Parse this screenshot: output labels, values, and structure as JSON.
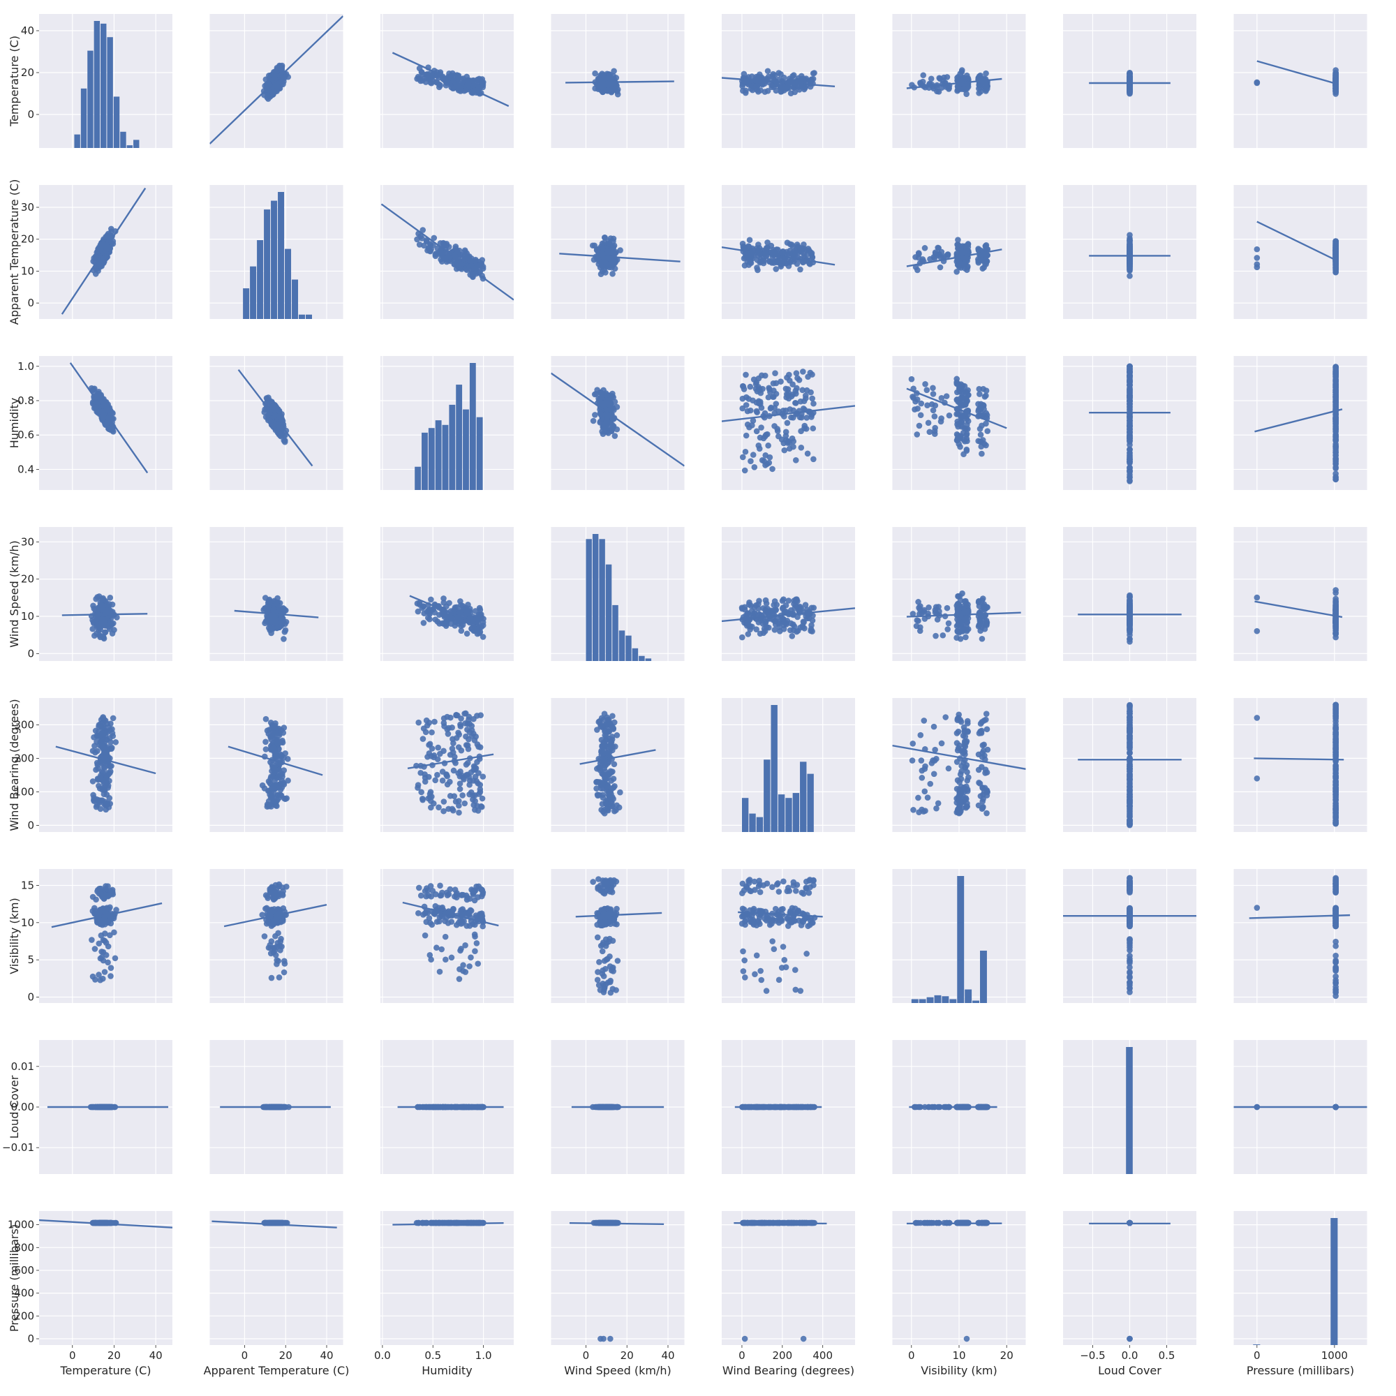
{
  "chart_data": {
    "type": "scatter",
    "kind": "pairplot",
    "grid": true,
    "colors": {
      "background": "#EAEAF2",
      "points": "#4C72B0",
      "grid": "#FFFFFF",
      "text": "#262626"
    },
    "variables": [
      {
        "name": "Temperature (C)",
        "lim": [
          -16,
          48
        ],
        "ticks": [
          0,
          20,
          40
        ],
        "tick_labels": [
          "0",
          "20",
          "40"
        ],
        "ylim": [
          -16,
          48
        ],
        "yticks": [
          0,
          20,
          40
        ],
        "ytick_labels": [
          "0",
          "20",
          "40"
        ]
      },
      {
        "name": "Apparent Temperature (C)",
        "lim": [
          -17,
          48
        ],
        "ticks": [
          0,
          20,
          40
        ],
        "tick_labels": [
          "0",
          "20",
          "40"
        ],
        "ylim": [
          -5,
          37
        ],
        "yticks": [
          0,
          10,
          20,
          30
        ],
        "ytick_labels": [
          "0",
          "10",
          "20",
          "30"
        ]
      },
      {
        "name": "Humidity",
        "lim": [
          -0.02,
          1.3
        ],
        "ticks": [
          0.0,
          0.5,
          1.0
        ],
        "tick_labels": [
          "0.0",
          "0.5",
          "1.0"
        ],
        "ylim": [
          0.28,
          1.06
        ],
        "yticks": [
          0.4,
          0.6,
          0.8,
          1.0
        ],
        "ytick_labels": [
          "0.4",
          "0.6",
          "0.8",
          "1.0"
        ]
      },
      {
        "name": "Wind Speed (km/h)",
        "lim": [
          -17,
          48
        ],
        "ticks": [
          0,
          20,
          40
        ],
        "tick_labels": [
          "0",
          "20",
          "40"
        ],
        "ylim": [
          -2,
          34
        ],
        "yticks": [
          0,
          10,
          20,
          30
        ],
        "ytick_labels": [
          "0",
          "10",
          "20",
          "30"
        ]
      },
      {
        "name": "Wind Bearing (degrees)",
        "lim": [
          -100,
          560
        ],
        "ticks": [
          0,
          200,
          400
        ],
        "tick_labels": [
          "0",
          "200",
          "400"
        ],
        "ylim": [
          -20,
          380
        ],
        "yticks": [
          0,
          100,
          200,
          300
        ],
        "ytick_labels": [
          "0",
          "100",
          "200",
          "300"
        ]
      },
      {
        "name": "Visibility (km)",
        "lim": [
          -4,
          24
        ],
        "ticks": [
          0,
          10,
          20
        ],
        "tick_labels": [
          "0",
          "10",
          "20"
        ],
        "ylim": [
          -0.8,
          17.2
        ],
        "yticks": [
          0,
          5,
          10,
          15
        ],
        "ytick_labels": [
          "0",
          "5",
          "10",
          "15"
        ]
      },
      {
        "name": "Loud Cover",
        "lim": [
          -0.9,
          0.9
        ],
        "ticks": [
          -0.5,
          0.0,
          0.5
        ],
        "tick_labels": [
          "−0.5",
          "0.0",
          "0.5"
        ],
        "ylim": [
          -0.0165,
          0.0165
        ],
        "yticks": [
          -0.01,
          0.0,
          0.01
        ],
        "ytick_labels": [
          "−0.01",
          "0.00",
          "0.01"
        ]
      },
      {
        "name": "Pressure (millibars)",
        "lim": [
          -300,
          1420
        ],
        "ticks": [
          0,
          1000
        ],
        "tick_labels": [
          "0",
          "1000"
        ],
        "ylim": [
          -55,
          1120
        ],
        "yticks": [
          0,
          200,
          400,
          600,
          800,
          1000
        ],
        "ytick_labels": [
          "0",
          "200",
          "400",
          "600",
          "800",
          "1000"
        ]
      }
    ],
    "histograms": [
      {
        "variable": "Temperature (C)",
        "bin_start": 0.9,
        "bin_width": 3.15,
        "heights": [
          5,
          22,
          36,
          47,
          46,
          41,
          19,
          6,
          1,
          3
        ]
      },
      {
        "variable": "Apparent Temperature (C)",
        "bin_start": -0.8,
        "bin_width": 3.4,
        "heights": [
          7,
          12,
          18,
          25,
          27,
          29,
          16,
          9,
          1,
          1
        ]
      },
      {
        "variable": "Humidity",
        "bin_start": 0.32,
        "bin_width": 0.068,
        "heights": [
          15,
          37,
          40,
          45,
          42,
          55,
          68,
          52,
          82,
          47
        ]
      },
      {
        "variable": "Wind Speed (km/h)",
        "bin_start": 0.0,
        "bin_width": 3.22,
        "heights": [
          48,
          50,
          48,
          38,
          22,
          12,
          10,
          5,
          2,
          1
        ]
      },
      {
        "variable": "Wind Bearing (degrees)",
        "bin_start": 0,
        "bin_width": 35.9,
        "heights": [
          48,
          26,
          21,
          102,
          179,
          53,
          48,
          55,
          99,
          82
        ]
      },
      {
        "variable": "Visibility (km)",
        "bin_start": 0,
        "bin_width": 1.6,
        "heights": [
          8,
          8,
          12,
          16,
          14,
          8,
          262,
          28,
          5,
          108
        ]
      },
      {
        "variable": "Loud Cover",
        "bin_start": -0.05,
        "bin_width": 0.1,
        "heights": [
          1000
        ]
      },
      {
        "variable": "Pressure (millibars)",
        "bin_start": -50,
        "bin_width": 100,
        "heights": [
          5,
          0,
          0,
          0,
          0,
          0,
          0,
          0,
          0,
          0,
          995
        ]
      }
    ],
    "regression_lines": [
      {
        "row": "Apparent Temperature (C)",
        "col": "Temperature (C)",
        "x": [
          -5,
          35
        ],
        "y": [
          -3.5,
          36
        ]
      },
      {
        "row": "Humidity",
        "col": "Temperature (C)",
        "x": [
          -1,
          36
        ],
        "y": [
          1.02,
          0.38
        ]
      },
      {
        "row": "Wind Speed (km/h)",
        "col": "Temperature (C)",
        "x": [
          -5,
          36
        ],
        "y": [
          10.3,
          10.7
        ]
      },
      {
        "row": "Wind Bearing (degrees)",
        "col": "Temperature (C)",
        "x": [
          -8,
          40
        ],
        "y": [
          235,
          155
        ]
      },
      {
        "row": "Visibility (km)",
        "col": "Temperature (C)",
        "x": [
          -10,
          43
        ],
        "y": [
          9.4,
          12.6
        ]
      },
      {
        "row": "Loud Cover",
        "col": "Temperature (C)",
        "x": [
          -12,
          46
        ],
        "y": [
          0.0,
          0.0
        ]
      },
      {
        "row": "Pressure (millibars)",
        "col": "Temperature (C)",
        "x": [
          -16,
          48
        ],
        "y": [
          1040,
          975
        ]
      },
      {
        "row": "Temperature (C)",
        "col": "Apparent Temperature (C)",
        "x": [
          -17,
          48
        ],
        "y": [
          -14,
          47
        ]
      },
      {
        "row": "Humidity",
        "col": "Apparent Temperature (C)",
        "x": [
          -3,
          33
        ],
        "y": [
          0.98,
          0.42
        ]
      },
      {
        "row": "Wind Speed (km/h)",
        "col": "Apparent Temperature (C)",
        "x": [
          -5,
          36
        ],
        "y": [
          11.5,
          9.7
        ]
      },
      {
        "row": "Wind Bearing (degrees)",
        "col": "Apparent Temperature (C)",
        "x": [
          -8,
          38
        ],
        "y": [
          235,
          150
        ]
      },
      {
        "row": "Visibility (km)",
        "col": "Apparent Temperature (C)",
        "x": [
          -10,
          40
        ],
        "y": [
          9.5,
          12.4
        ]
      },
      {
        "row": "Loud Cover",
        "col": "Apparent Temperature (C)",
        "x": [
          -12,
          42
        ],
        "y": [
          0.0,
          0.0
        ]
      },
      {
        "row": "Pressure (millibars)",
        "col": "Apparent Temperature (C)",
        "x": [
          -16,
          45
        ],
        "y": [
          1030,
          975
        ]
      },
      {
        "row": "Temperature (C)",
        "col": "Humidity",
        "x": [
          0.1,
          1.25
        ],
        "y": [
          29.5,
          4
        ]
      },
      {
        "row": "Apparent Temperature (C)",
        "col": "Humidity",
        "x": [
          -0.01,
          1.3
        ],
        "y": [
          31,
          1
        ]
      },
      {
        "row": "Wind Speed (km/h)",
        "col": "Humidity",
        "x": [
          0.27,
          1.0
        ],
        "y": [
          15.5,
          7.2
        ]
      },
      {
        "row": "Wind Bearing (degrees)",
        "col": "Humidity",
        "x": [
          0.25,
          1.1
        ],
        "y": [
          170,
          212
        ]
      },
      {
        "row": "Visibility (km)",
        "col": "Humidity",
        "x": [
          0.2,
          1.15
        ],
        "y": [
          12.7,
          9.6
        ]
      },
      {
        "row": "Loud Cover",
        "col": "Humidity",
        "x": [
          0.15,
          1.2
        ],
        "y": [
          0.0,
          0.0
        ]
      },
      {
        "row": "Pressure (millibars)",
        "col": "Humidity",
        "x": [
          0.1,
          1.2
        ],
        "y": [
          1000,
          1015
        ]
      },
      {
        "row": "Temperature (C)",
        "col": "Wind Speed (km/h)",
        "x": [
          -10,
          43
        ],
        "y": [
          15.2,
          15.8
        ]
      },
      {
        "row": "Apparent Temperature (C)",
        "col": "Wind Speed (km/h)",
        "x": [
          -13,
          46
        ],
        "y": [
          15.5,
          13
        ]
      },
      {
        "row": "Humidity",
        "col": "Wind Speed (km/h)",
        "x": [
          -17,
          48
        ],
        "y": [
          0.96,
          0.42
        ]
      },
      {
        "row": "Wind Bearing (degrees)",
        "col": "Wind Speed (km/h)",
        "x": [
          -3,
          34
        ],
        "y": [
          183,
          225
        ]
      },
      {
        "row": "Visibility (km)",
        "col": "Wind Speed (km/h)",
        "x": [
          -5,
          37
        ],
        "y": [
          10.8,
          11.3
        ]
      },
      {
        "row": "Loud Cover",
        "col": "Wind Speed (km/h)",
        "x": [
          -7,
          38
        ],
        "y": [
          0.0,
          0.0
        ]
      },
      {
        "row": "Pressure (millibars)",
        "col": "Wind Speed (km/h)",
        "x": [
          -8,
          38
        ],
        "y": [
          1015,
          1005
        ]
      },
      {
        "row": "Temperature (C)",
        "col": "Wind Bearing (degrees)",
        "x": [
          -100,
          460
        ],
        "y": [
          17.5,
          13.4
        ]
      },
      {
        "row": "Apparent Temperature (C)",
        "col": "Wind Bearing (degrees)",
        "x": [
          -100,
          460
        ],
        "y": [
          17.5,
          12
        ]
      },
      {
        "row": "Humidity",
        "col": "Wind Bearing (degrees)",
        "x": [
          -100,
          560
        ],
        "y": [
          0.68,
          0.77
        ]
      },
      {
        "row": "Wind Speed (km/h)",
        "col": "Wind Bearing (degrees)",
        "x": [
          -100,
          560
        ],
        "y": [
          8.7,
          12.2
        ]
      },
      {
        "row": "Visibility (km)",
        "col": "Wind Bearing (degrees)",
        "x": [
          -20,
          400
        ],
        "y": [
          11.4,
          10.8
        ]
      },
      {
        "row": "Loud Cover",
        "col": "Wind Bearing (degrees)",
        "x": [
          -35,
          395
        ],
        "y": [
          0.0,
          0.0
        ]
      },
      {
        "row": "Pressure (millibars)",
        "col": "Wind Bearing (degrees)",
        "x": [
          -40,
          420
        ],
        "y": [
          1015,
          1010
        ]
      },
      {
        "row": "Temperature (C)",
        "col": "Visibility (km)",
        "x": [
          -1,
          19
        ],
        "y": [
          12.5,
          17
        ]
      },
      {
        "row": "Apparent Temperature (C)",
        "col": "Visibility (km)",
        "x": [
          -1,
          19
        ],
        "y": [
          11.5,
          16.8
        ]
      },
      {
        "row": "Humidity",
        "col": "Visibility (km)",
        "x": [
          -1,
          20
        ],
        "y": [
          0.87,
          0.64
        ]
      },
      {
        "row": "Wind Speed (km/h)",
        "col": "Visibility (km)",
        "x": [
          -1,
          23
        ],
        "y": [
          9.9,
          11
        ]
      },
      {
        "row": "Wind Bearing (degrees)",
        "col": "Visibility (km)",
        "x": [
          -4,
          24
        ],
        "y": [
          238,
          168
        ]
      },
      {
        "row": "Loud Cover",
        "col": "Visibility (km)",
        "x": [
          -0.5,
          18
        ],
        "y": [
          0.0,
          0.0
        ]
      },
      {
        "row": "Pressure (millibars)",
        "col": "Visibility (km)",
        "x": [
          -1,
          19
        ],
        "y": [
          1010,
          1012
        ]
      },
      {
        "row": "Temperature (C)",
        "col": "Loud Cover",
        "x": [
          -0.55,
          0.55
        ],
        "y": [
          15,
          15
        ]
      },
      {
        "row": "Apparent Temperature (C)",
        "col": "Loud Cover",
        "x": [
          -0.55,
          0.55
        ],
        "y": [
          14.8,
          14.8
        ]
      },
      {
        "row": "Humidity",
        "col": "Loud Cover",
        "x": [
          -0.55,
          0.55
        ],
        "y": [
          0.73,
          0.73
        ]
      },
      {
        "row": "Wind Speed (km/h)",
        "col": "Loud Cover",
        "x": [
          -0.7,
          0.7
        ],
        "y": [
          10.5,
          10.5
        ]
      },
      {
        "row": "Wind Bearing (degrees)",
        "col": "Loud Cover",
        "x": [
          -0.7,
          0.7
        ],
        "y": [
          196,
          196
        ]
      },
      {
        "row": "Visibility (km)",
        "col": "Loud Cover",
        "x": [
          -0.9,
          0.9
        ],
        "y": [
          10.9,
          10.9
        ]
      },
      {
        "row": "Pressure (millibars)",
        "col": "Loud Cover",
        "x": [
          -0.55,
          0.55
        ],
        "y": [
          1010,
          1010
        ]
      },
      {
        "row": "Temperature (C)",
        "col": "Pressure (millibars)",
        "x": [
          0,
          1040
        ],
        "y": [
          25.5,
          14.5
        ]
      },
      {
        "row": "Apparent Temperature (C)",
        "col": "Pressure (millibars)",
        "x": [
          0,
          1040
        ],
        "y": [
          25.5,
          13.2
        ]
      },
      {
        "row": "Humidity",
        "col": "Pressure (millibars)",
        "x": [
          -30,
          1100
        ],
        "y": [
          0.62,
          0.75
        ]
      },
      {
        "row": "Wind Speed (km/h)",
        "col": "Pressure (millibars)",
        "x": [
          -30,
          1100
        ],
        "y": [
          14,
          9.8
        ]
      },
      {
        "row": "Wind Bearing (degrees)",
        "col": "Pressure (millibars)",
        "x": [
          -40,
          1120
        ],
        "y": [
          200,
          196
        ]
      },
      {
        "row": "Visibility (km)",
        "col": "Pressure (millibars)",
        "x": [
          -100,
          1200
        ],
        "y": [
          10.6,
          11.0
        ]
      },
      {
        "row": "Loud Cover",
        "col": "Pressure (millibars)",
        "x": [
          -300,
          1420
        ],
        "y": [
          0.0,
          0.0
        ]
      }
    ]
  }
}
